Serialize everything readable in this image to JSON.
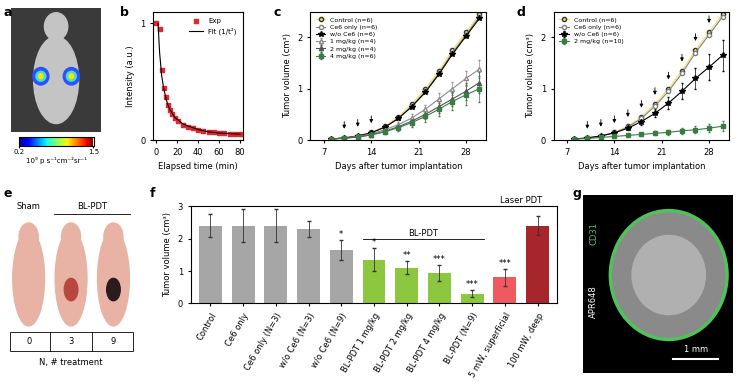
{
  "chart_data": [
    {
      "label": "b",
      "type": "scatter",
      "x_label": "Elapsed time (min)",
      "y_label": "Intensity (a.u.)",
      "xlim": [
        -3,
        83
      ],
      "xticks": [
        0,
        20,
        40,
        60,
        80
      ],
      "ylim": [
        0,
        1.1
      ],
      "yticks": [
        0,
        1
      ],
      "legend": "upper right",
      "grid": false,
      "series": [
        {
          "name": "Exp",
          "type": "scatter",
          "color": "#e0282e",
          "marker": "square",
          "x": [
            0,
            3,
            5,
            7,
            9,
            11,
            13,
            15,
            18,
            21,
            25,
            30,
            35,
            40,
            45,
            50,
            55,
            60,
            65,
            70,
            75,
            80
          ],
          "values": [
            1.0,
            0.95,
            0.6,
            0.45,
            0.37,
            0.3,
            0.26,
            0.22,
            0.19,
            0.16,
            0.13,
            0.11,
            0.1,
            0.09,
            0.08,
            0.07,
            0.07,
            0.06,
            0.06,
            0.05,
            0.05,
            0.05
          ]
        },
        {
          "name": "Fit (1/t²)",
          "type": "line",
          "color": "#000000",
          "line_style": "solid",
          "x": [
            1.5,
            3,
            5,
            7,
            9,
            11,
            13,
            15,
            18,
            21,
            25,
            30,
            40,
            50,
            60,
            70,
            80
          ],
          "values": [
            1.0,
            0.75,
            0.55,
            0.44,
            0.36,
            0.3,
            0.26,
            0.23,
            0.19,
            0.17,
            0.14,
            0.12,
            0.09,
            0.07,
            0.06,
            0.055,
            0.05
          ]
        }
      ]
    },
    {
      "label": "c",
      "type": "line",
      "x_label": "Days after tumor implantation",
      "y_label": "Tumor volume (cm³)",
      "x": [
        8,
        10,
        12,
        14,
        16,
        18,
        20,
        22,
        24,
        26,
        28,
        30
      ],
      "xlim": [
        5,
        31
      ],
      "xticks": [
        7,
        14,
        21,
        28
      ],
      "ylim": [
        0,
        2.5
      ],
      "yticks": [
        0,
        1,
        2
      ],
      "legend": "upper left",
      "grid": false,
      "treatment_days": [
        10,
        12,
        14
      ],
      "series": [
        {
          "name": "Control (n=6)",
          "color": "#f2e35c",
          "marker": "circle",
          "values": [
            0.02,
            0.04,
            0.08,
            0.15,
            0.27,
            0.45,
            0.7,
            1.0,
            1.35,
            1.75,
            2.1,
            2.45
          ]
        },
        {
          "name": "Ce6 only (n=6)",
          "color": "#808080",
          "marker": "open_circle",
          "values": [
            0.02,
            0.04,
            0.08,
            0.14,
            0.25,
            0.42,
            0.66,
            0.95,
            1.3,
            1.7,
            2.05,
            2.4
          ]
        },
        {
          "name": "w/o Ce6 (n=6)",
          "color": "#000000",
          "marker": "star",
          "values": [
            0.02,
            0.04,
            0.08,
            0.14,
            0.25,
            0.42,
            0.65,
            0.93,
            1.28,
            1.67,
            2.02,
            2.37
          ]
        },
        {
          "name": "1 mg/kg (n=4)",
          "color": "#8c8c8c",
          "marker": "open_triangle",
          "values": [
            0.02,
            0.04,
            0.07,
            0.12,
            0.2,
            0.3,
            0.43,
            0.6,
            0.8,
            1.0,
            1.2,
            1.38
          ],
          "errors": [
            0,
            0,
            0,
            0.02,
            0.03,
            0.05,
            0.07,
            0.09,
            0.11,
            0.13,
            0.15,
            0.18
          ]
        },
        {
          "name": "2 mg/kg (n=4)",
          "color": "#555555",
          "marker": "triangle",
          "values": [
            0.02,
            0.04,
            0.06,
            0.1,
            0.17,
            0.26,
            0.37,
            0.5,
            0.65,
            0.8,
            0.95,
            1.12
          ],
          "errors": [
            0,
            0,
            0,
            0.02,
            0.03,
            0.05,
            0.07,
            0.09,
            0.12,
            0.14,
            0.17,
            0.2
          ]
        },
        {
          "name": "4 mg/kg (n=6)",
          "color": "#3a7d44",
          "marker": "square",
          "values": [
            0.02,
            0.03,
            0.06,
            0.1,
            0.16,
            0.24,
            0.34,
            0.46,
            0.6,
            0.75,
            0.88,
            1.0
          ],
          "errors": [
            0,
            0,
            0,
            0.02,
            0.04,
            0.06,
            0.08,
            0.1,
            0.13,
            0.16,
            0.2,
            0.25
          ]
        }
      ]
    },
    {
      "label": "d",
      "type": "line",
      "x_label": "Days after tumor implantation",
      "y_label": "Tumor volume (cm³)",
      "x": [
        8,
        10,
        12,
        14,
        16,
        18,
        20,
        22,
        24,
        26,
        28,
        30
      ],
      "xlim": [
        5,
        31
      ],
      "xticks": [
        7,
        14,
        21,
        28
      ],
      "ylim": [
        0,
        2.5
      ],
      "yticks": [
        0,
        1,
        2
      ],
      "legend": "upper left",
      "grid": false,
      "treatment_days": [
        10,
        12,
        14,
        16,
        18,
        20,
        22,
        24,
        26,
        28
      ],
      "series": [
        {
          "name": "Control (n=6)",
          "color": "#f2e35c",
          "marker": "circle",
          "values": [
            0.02,
            0.04,
            0.08,
            0.15,
            0.27,
            0.45,
            0.7,
            1.0,
            1.35,
            1.75,
            2.1,
            2.45
          ]
        },
        {
          "name": "Ce6 only (n=6)",
          "color": "#808080",
          "marker": "open_circle",
          "values": [
            0.02,
            0.04,
            0.08,
            0.14,
            0.25,
            0.42,
            0.66,
            0.95,
            1.3,
            1.7,
            2.05,
            2.4
          ]
        },
        {
          "name": "w/o Ce6 (n=6)",
          "color": "#000000",
          "marker": "star",
          "values": [
            0.02,
            0.04,
            0.08,
            0.14,
            0.23,
            0.36,
            0.52,
            0.72,
            0.95,
            1.2,
            1.42,
            1.65
          ],
          "errors": [
            0,
            0,
            0,
            0.02,
            0.04,
            0.06,
            0.08,
            0.12,
            0.16,
            0.2,
            0.25,
            0.3
          ]
        },
        {
          "name": "2 mg/kg (n=10)",
          "color": "#3a7d44",
          "marker": "square",
          "values": [
            0.02,
            0.03,
            0.05,
            0.07,
            0.09,
            0.11,
            0.13,
            0.15,
            0.18,
            0.2,
            0.23,
            0.27
          ],
          "errors": [
            0,
            0,
            0.01,
            0.02,
            0.02,
            0.03,
            0.04,
            0.05,
            0.06,
            0.07,
            0.08,
            0.1
          ]
        }
      ]
    },
    {
      "label": "f",
      "type": "bar",
      "y_label": "Tumor volume (cm³)",
      "categories": [
        "Control",
        "Ce6 only",
        "Ce6 only (N=3)",
        "w/o Ce6 (N=3)",
        "w/o Ce6 (N=9)",
        "BL-PDT 1 mg/kg",
        "BL-PDT 2 mg/kg",
        "BL-PDT 4 mg/kg",
        "BL-PDT (N=9)",
        "5 mW, superficial",
        "100 mW, deep"
      ],
      "values": [
        2.4,
        2.4,
        2.4,
        2.3,
        1.65,
        1.35,
        1.1,
        0.95,
        0.3,
        0.8,
        2.4
      ],
      "errors": [
        0.35,
        0.5,
        0.5,
        0.25,
        0.3,
        0.35,
        0.2,
        0.25,
        0.1,
        0.25,
        0.3
      ],
      "significance": [
        null,
        null,
        null,
        null,
        "*",
        "*",
        "**",
        "***",
        "***",
        "***",
        null
      ],
      "colors": [
        "#a6a6a6",
        "#a6a6a6",
        "#a6a6a6",
        "#a6a6a6",
        "#a6a6a6",
        "#8dc63f",
        "#8dc63f",
        "#8dc63f",
        "#8dc63f",
        "#f0595f",
        "#a6262c"
      ],
      "groups": [
        {
          "label": "BL-PDT",
          "members": [
            "BL-PDT 1 mg/kg",
            "BL-PDT 2 mg/kg",
            "BL-PDT 4 mg/kg",
            "BL-PDT (N=9)"
          ]
        },
        {
          "label": "Laser PDT",
          "members": [
            "5 mW, superficial",
            "100 mW, deep"
          ]
        }
      ],
      "ylim": [
        0,
        3
      ],
      "yticks": [
        0,
        1,
        2,
        3
      ],
      "grid": false
    }
  ],
  "images": [
    {
      "label": "a",
      "colorbar": {
        "range": [
          0.2,
          1.5
        ],
        "ticks": [
          0.2,
          1.5
        ],
        "label": "10⁹ p s⁻¹cm⁻²sr⁻¹"
      }
    },
    {
      "label": "e",
      "columns": [
        {
          "group": "Sham",
          "N": 0
        },
        {
          "group": "BL-PDT",
          "N": 3
        },
        {
          "group": "BL-PDT",
          "N": 9
        }
      ],
      "row_title": "N, # treatment"
    },
    {
      "label": "g",
      "stains": [
        {
          "name": "CD31",
          "color": "#4fc25a"
        },
        {
          "name": "APR648",
          "color": "#ffffff"
        }
      ],
      "scale_bar": "1 mm"
    }
  ]
}
